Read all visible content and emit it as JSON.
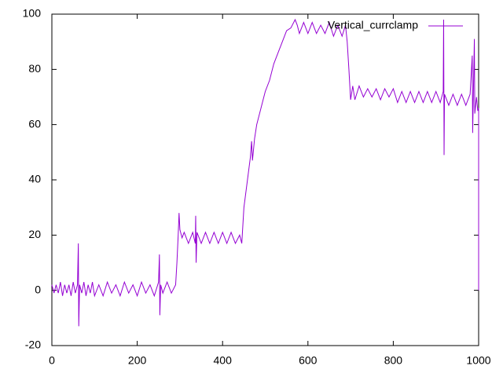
{
  "chart_data": {
    "type": "line",
    "legend_position": "top-right",
    "xlim": [
      0,
      1000
    ],
    "xticks": [
      0,
      200,
      400,
      600,
      800,
      1000
    ],
    "ylim": [
      -20,
      100
    ],
    "yticks": [
      -20,
      0,
      20,
      40,
      60,
      80,
      100
    ],
    "x": [
      0,
      5,
      10,
      15,
      20,
      25,
      30,
      35,
      40,
      45,
      50,
      55,
      60,
      62,
      63,
      65,
      70,
      75,
      80,
      85,
      90,
      95,
      100,
      110,
      120,
      130,
      140,
      150,
      160,
      170,
      180,
      190,
      200,
      210,
      220,
      230,
      240,
      250,
      252,
      253,
      255,
      260,
      270,
      280,
      290,
      293,
      296,
      298,
      300,
      305,
      310,
      320,
      330,
      336,
      337,
      338,
      340,
      350,
      360,
      370,
      380,
      390,
      400,
      410,
      420,
      430,
      440,
      445,
      450,
      460,
      465,
      468,
      470,
      475,
      480,
      490,
      500,
      510,
      520,
      530,
      540,
      550,
      560,
      570,
      575,
      580,
      590,
      600,
      610,
      620,
      630,
      640,
      650,
      660,
      670,
      680,
      688,
      692,
      696,
      700,
      705,
      710,
      720,
      730,
      740,
      750,
      760,
      770,
      780,
      790,
      800,
      810,
      820,
      830,
      840,
      850,
      860,
      870,
      880,
      890,
      900,
      910,
      917,
      918,
      919,
      920,
      930,
      940,
      950,
      960,
      970,
      980,
      985,
      986,
      990,
      991,
      995,
      998,
      1000,
      1000
    ],
    "series": [
      {
        "name": "Vertical_currclamp",
        "color": "#9400d3",
        "values": [
          2,
          -1,
          2,
          -1,
          3,
          -2,
          2,
          -1,
          2,
          -2,
          3,
          -1,
          2,
          17,
          -13,
          2,
          -1,
          3,
          -2,
          2,
          -1,
          3,
          -2,
          2,
          -2,
          3,
          -1,
          2,
          -2,
          3,
          -1,
          2,
          -2,
          3,
          -1,
          2,
          -2,
          3,
          13,
          -9,
          2,
          -1,
          3,
          -1,
          2,
          10,
          20,
          28,
          22,
          19,
          21,
          17,
          21,
          17,
          27,
          10,
          21,
          17,
          21,
          17,
          21,
          17,
          21,
          17,
          21,
          17,
          20,
          17,
          30,
          42,
          48,
          54,
          47,
          55,
          60,
          66,
          72,
          76,
          82,
          86,
          90,
          94,
          95,
          98,
          96,
          93,
          97,
          93,
          97,
          93,
          96,
          93,
          97,
          92,
          96,
          92,
          96,
          90,
          80,
          69,
          74,
          69,
          74,
          70,
          73,
          70,
          73,
          69,
          73,
          70,
          73,
          68,
          72,
          68,
          72,
          68,
          72,
          68,
          72,
          68,
          72,
          68,
          72,
          98,
          49,
          71,
          67,
          71,
          67,
          71,
          67,
          71,
          85,
          57,
          91,
          64,
          70,
          65,
          66,
          0
        ]
      }
    ]
  }
}
